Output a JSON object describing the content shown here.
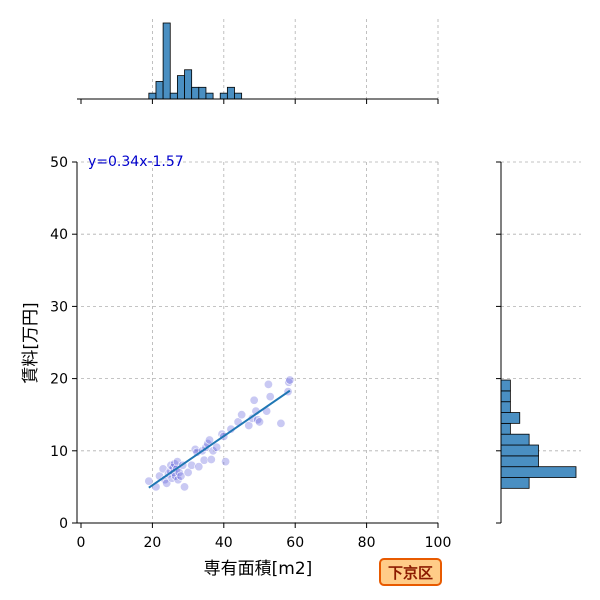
{
  "chart_data": {
    "type": "scatter",
    "xlabel": "専有面積[m2]",
    "ylabel": "賃料[万円]",
    "xlim": [
      0,
      100
    ],
    "ylim": [
      0,
      50
    ],
    "xticks": [
      0,
      20,
      40,
      60,
      80,
      100
    ],
    "yticks": [
      0,
      10,
      20,
      30,
      40,
      50
    ],
    "grid": true,
    "annotation": "y=0.34x-1.57",
    "region_label": "下京区",
    "fit_line": {
      "slope": 0.34,
      "intercept": -1.57,
      "x_range": [
        19,
        58.5
      ]
    },
    "colors": {
      "point": "#4b4bd6",
      "fit_line": "#1f77b4",
      "hist_fill": "#4a8fc2",
      "badge_fill": "#ffcc88",
      "badge_border": "#e85a00"
    },
    "points": [
      [
        19,
        5.8
      ],
      [
        21,
        5.0
      ],
      [
        22,
        6.5
      ],
      [
        23,
        7.5
      ],
      [
        23.5,
        6.0
      ],
      [
        24,
        5.5
      ],
      [
        24.5,
        6.8
      ],
      [
        25,
        7.2
      ],
      [
        25.2,
        8.0
      ],
      [
        25.5,
        6.2
      ],
      [
        25.8,
        7.7
      ],
      [
        26,
        7.0
      ],
      [
        26.2,
        8.2
      ],
      [
        26.5,
        6.5
      ],
      [
        26.8,
        7.5
      ],
      [
        27,
        8.5
      ],
      [
        27.2,
        6.0
      ],
      [
        27.5,
        7.0
      ],
      [
        28,
        6.5
      ],
      [
        28.5,
        8.0
      ],
      [
        29,
        5.0
      ],
      [
        30,
        7.0
      ],
      [
        31,
        8.0
      ],
      [
        32,
        10.2
      ],
      [
        32.5,
        9.8
      ],
      [
        33,
        7.8
      ],
      [
        34,
        10.0
      ],
      [
        34.5,
        8.7
      ],
      [
        35,
        10.5
      ],
      [
        35.5,
        11.0
      ],
      [
        36,
        11.5
      ],
      [
        36.5,
        8.8
      ],
      [
        37,
        10.0
      ],
      [
        38,
        10.5
      ],
      [
        39.5,
        12.3
      ],
      [
        40,
        12.0
      ],
      [
        40.5,
        8.5
      ],
      [
        42,
        13.0
      ],
      [
        44,
        14.0
      ],
      [
        45,
        15.0
      ],
      [
        47,
        13.5
      ],
      [
        48,
        14.5
      ],
      [
        48.5,
        17.0
      ],
      [
        49,
        15.5
      ],
      [
        49.5,
        14.3
      ],
      [
        50,
        14.0
      ],
      [
        52,
        15.5
      ],
      [
        52.5,
        19.2
      ],
      [
        53,
        17.5
      ],
      [
        56,
        13.8
      ],
      [
        58,
        18.2
      ],
      [
        58.2,
        19.5
      ],
      [
        58.5,
        19.8
      ]
    ],
    "x_histogram": {
      "bin_edges": [
        19,
        21,
        23,
        25,
        27,
        29,
        31,
        33,
        35,
        37,
        39,
        41,
        43,
        45,
        47,
        49,
        51,
        53,
        55,
        57,
        59
      ],
      "counts": [
        1,
        3,
        13,
        1,
        4,
        5,
        2,
        2,
        1,
        0,
        1,
        2,
        1,
        0,
        0,
        0,
        0,
        0,
        0,
        0
      ]
    },
    "y_histogram": {
      "bin_edges": [
        4.8,
        6.3,
        7.8,
        9.3,
        10.8,
        12.3,
        13.8,
        15.3,
        16.8,
        18.3,
        19.8
      ],
      "counts": [
        3,
        8,
        4,
        4,
        3,
        1,
        2,
        1,
        1,
        1
      ]
    }
  }
}
